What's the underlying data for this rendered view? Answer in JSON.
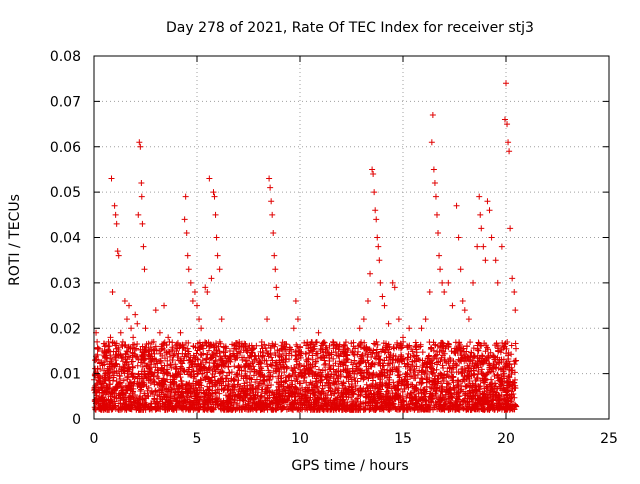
{
  "chart_data": {
    "type": "scatter",
    "title": "Day 278 of 2021, Rate Of TEC Index for receiver stj3",
    "xlabel": "GPS time / hours",
    "ylabel": "ROTI / TECUs",
    "xlim": [
      0,
      25
    ],
    "ylim": [
      0,
      0.08
    ],
    "xticks": [
      0,
      5,
      10,
      15,
      20,
      25
    ],
    "xtick_labels": [
      "0",
      "5",
      "10",
      "15",
      "20",
      "25"
    ],
    "yticks": [
      0,
      0.01,
      0.02,
      0.03,
      0.04,
      0.05,
      0.06,
      0.07,
      0.08
    ],
    "ytick_labels": [
      "0",
      "0.01",
      "0.02",
      "0.03",
      "0.04",
      "0.05",
      "0.06",
      "0.07",
      "0.08"
    ],
    "grid": true,
    "marker": "plus",
    "marker_color": "#e00000",
    "series": [
      {
        "name": "ROTI",
        "points": [
          [
            0.1,
            0.019
          ],
          [
            0.15,
            0.017
          ],
          [
            0.2,
            0.013
          ],
          [
            0.3,
            0.011
          ],
          [
            0.4,
            0.015
          ],
          [
            0.5,
            0.012
          ],
          [
            0.6,
            0.014
          ],
          [
            0.7,
            0.016
          ],
          [
            0.8,
            0.018
          ],
          [
            0.85,
            0.053
          ],
          [
            0.9,
            0.028
          ],
          [
            1.0,
            0.047
          ],
          [
            1.05,
            0.045
          ],
          [
            1.1,
            0.043
          ],
          [
            1.15,
            0.037
          ],
          [
            1.2,
            0.036
          ],
          [
            1.3,
            0.019
          ],
          [
            1.4,
            0.017
          ],
          [
            1.5,
            0.026
          ],
          [
            1.6,
            0.022
          ],
          [
            1.7,
            0.025
          ],
          [
            1.8,
            0.02
          ],
          [
            1.9,
            0.018
          ],
          [
            2.0,
            0.023
          ],
          [
            2.1,
            0.021
          ],
          [
            2.15,
            0.045
          ],
          [
            2.2,
            0.061
          ],
          [
            2.25,
            0.06
          ],
          [
            2.3,
            0.052
          ],
          [
            2.32,
            0.049
          ],
          [
            2.35,
            0.043
          ],
          [
            2.4,
            0.038
          ],
          [
            2.45,
            0.033
          ],
          [
            2.5,
            0.02
          ],
          [
            2.7,
            0.015
          ],
          [
            2.9,
            0.017
          ],
          [
            3.0,
            0.024
          ],
          [
            3.2,
            0.019
          ],
          [
            3.4,
            0.025
          ],
          [
            3.6,
            0.018
          ],
          [
            3.8,
            0.013
          ],
          [
            4.0,
            0.015
          ],
          [
            4.2,
            0.019
          ],
          [
            4.4,
            0.044
          ],
          [
            4.45,
            0.049
          ],
          [
            4.5,
            0.041
          ],
          [
            4.55,
            0.036
          ],
          [
            4.6,
            0.033
          ],
          [
            4.7,
            0.03
          ],
          [
            4.8,
            0.026
          ],
          [
            4.9,
            0.028
          ],
          [
            5.0,
            0.025
          ],
          [
            5.1,
            0.022
          ],
          [
            5.2,
            0.02
          ],
          [
            5.4,
            0.029
          ],
          [
            5.5,
            0.028
          ],
          [
            5.6,
            0.053
          ],
          [
            5.7,
            0.031
          ],
          [
            5.8,
            0.05
          ],
          [
            5.85,
            0.049
          ],
          [
            5.9,
            0.045
          ],
          [
            5.95,
            0.04
          ],
          [
            6.0,
            0.036
          ],
          [
            6.1,
            0.033
          ],
          [
            6.2,
            0.022
          ],
          [
            6.4,
            0.016
          ],
          [
            6.6,
            0.015
          ],
          [
            6.8,
            0.014
          ],
          [
            7.0,
            0.016
          ],
          [
            7.2,
            0.013
          ],
          [
            7.4,
            0.015
          ],
          [
            7.6,
            0.014
          ],
          [
            7.8,
            0.013
          ],
          [
            8.0,
            0.012
          ],
          [
            8.2,
            0.014
          ],
          [
            8.4,
            0.022
          ],
          [
            8.5,
            0.053
          ],
          [
            8.55,
            0.051
          ],
          [
            8.6,
            0.048
          ],
          [
            8.65,
            0.045
          ],
          [
            8.7,
            0.041
          ],
          [
            8.75,
            0.036
          ],
          [
            8.8,
            0.033
          ],
          [
            8.85,
            0.029
          ],
          [
            8.9,
            0.027
          ],
          [
            9.0,
            0.015
          ],
          [
            9.2,
            0.013
          ],
          [
            9.5,
            0.015
          ],
          [
            9.7,
            0.02
          ],
          [
            9.8,
            0.026
          ],
          [
            9.9,
            0.022
          ],
          [
            10.0,
            0.014
          ],
          [
            10.3,
            0.013
          ],
          [
            10.6,
            0.014
          ],
          [
            10.9,
            0.019
          ],
          [
            11.0,
            0.015
          ],
          [
            11.3,
            0.014
          ],
          [
            11.6,
            0.017
          ],
          [
            11.9,
            0.016
          ],
          [
            12.1,
            0.015
          ],
          [
            12.3,
            0.014
          ],
          [
            12.6,
            0.016
          ],
          [
            12.9,
            0.02
          ],
          [
            13.1,
            0.022
          ],
          [
            13.3,
            0.026
          ],
          [
            13.4,
            0.032
          ],
          [
            13.5,
            0.055
          ],
          [
            13.55,
            0.054
          ],
          [
            13.6,
            0.05
          ],
          [
            13.65,
            0.046
          ],
          [
            13.7,
            0.044
          ],
          [
            13.75,
            0.04
          ],
          [
            13.8,
            0.038
          ],
          [
            13.85,
            0.035
          ],
          [
            13.9,
            0.03
          ],
          [
            14.0,
            0.027
          ],
          [
            14.1,
            0.025
          ],
          [
            14.3,
            0.021
          ],
          [
            14.5,
            0.03
          ],
          [
            14.6,
            0.029
          ],
          [
            14.8,
            0.022
          ],
          [
            15.0,
            0.018
          ],
          [
            15.3,
            0.02
          ],
          [
            15.6,
            0.016
          ],
          [
            15.9,
            0.02
          ],
          [
            16.1,
            0.022
          ],
          [
            16.3,
            0.028
          ],
          [
            16.4,
            0.061
          ],
          [
            16.45,
            0.067
          ],
          [
            16.5,
            0.055
          ],
          [
            16.55,
            0.052
          ],
          [
            16.6,
            0.049
          ],
          [
            16.65,
            0.045
          ],
          [
            16.7,
            0.041
          ],
          [
            16.75,
            0.036
          ],
          [
            16.8,
            0.033
          ],
          [
            16.9,
            0.03
          ],
          [
            17.0,
            0.028
          ],
          [
            17.2,
            0.03
          ],
          [
            17.4,
            0.025
          ],
          [
            17.6,
            0.047
          ],
          [
            17.7,
            0.04
          ],
          [
            17.8,
            0.033
          ],
          [
            17.9,
            0.026
          ],
          [
            18.0,
            0.024
          ],
          [
            18.2,
            0.022
          ],
          [
            18.4,
            0.03
          ],
          [
            18.6,
            0.038
          ],
          [
            18.7,
            0.049
          ],
          [
            18.75,
            0.045
          ],
          [
            18.8,
            0.042
          ],
          [
            18.9,
            0.038
          ],
          [
            19.0,
            0.035
          ],
          [
            19.1,
            0.048
          ],
          [
            19.2,
            0.046
          ],
          [
            19.3,
            0.04
          ],
          [
            19.5,
            0.035
          ],
          [
            19.6,
            0.03
          ],
          [
            19.8,
            0.038
          ],
          [
            19.95,
            0.066
          ],
          [
            20.0,
            0.074
          ],
          [
            20.05,
            0.065
          ],
          [
            20.1,
            0.061
          ],
          [
            20.15,
            0.059
          ],
          [
            20.2,
            0.042
          ],
          [
            20.3,
            0.031
          ],
          [
            20.4,
            0.028
          ],
          [
            20.45,
            0.024
          ]
        ]
      }
    ],
    "background_band": {
      "x": [
        0,
        20.5
      ],
      "min": 0.002,
      "max": 0.017,
      "count": 4200
    }
  }
}
